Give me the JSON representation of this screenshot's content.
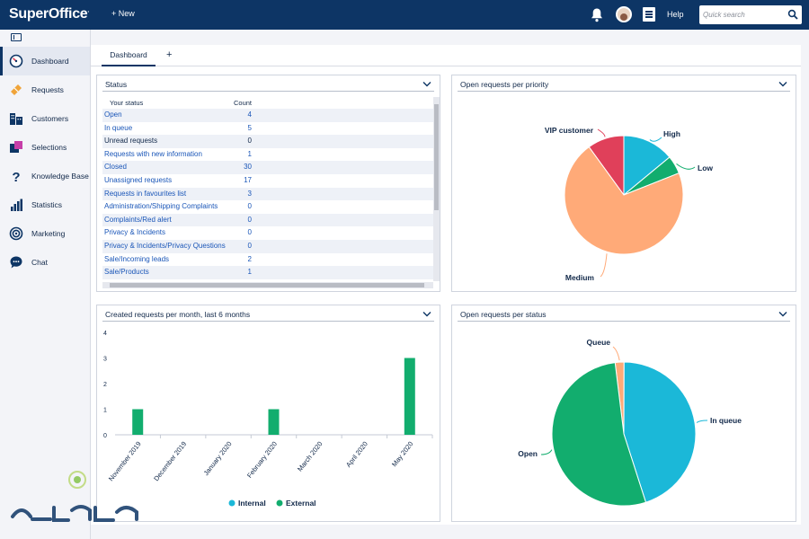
{
  "app": {
    "logo": "SuperOffice",
    "logo_mark": "."
  },
  "topbar": {
    "new_label": "+ New",
    "help_label": "Help",
    "search_placeholder": "Quick search"
  },
  "sidebar": {
    "items": [
      {
        "label": "Dashboard",
        "icon": "speedometer-icon",
        "active": true
      },
      {
        "label": "Requests",
        "icon": "ticket-icon"
      },
      {
        "label": "Customers",
        "icon": "buildings-icon"
      },
      {
        "label": "Selections",
        "icon": "selections-icon"
      },
      {
        "label": "Knowledge Base",
        "icon": "question-mark-icon"
      },
      {
        "label": "Statistics",
        "icon": "bar-chart-icon"
      },
      {
        "label": "Marketing",
        "icon": "target-icon"
      },
      {
        "label": "Chat",
        "icon": "chat-bubble-icon"
      }
    ]
  },
  "tabs": {
    "items": [
      "Dashboard"
    ],
    "add_label": "+"
  },
  "status_panel": {
    "title": "Status",
    "col_status": "Your status",
    "col_count": "Count",
    "rows": [
      {
        "label": "Open",
        "count": "4",
        "link": true
      },
      {
        "label": "In queue",
        "count": "5",
        "link": true
      },
      {
        "label": "Unread requests",
        "count": "0",
        "link": false
      },
      {
        "label": "Requests with new information",
        "count": "1",
        "link": true
      },
      {
        "label": "Closed",
        "count": "30",
        "link": true
      },
      {
        "label": "Unassigned requests",
        "count": "17",
        "link": true
      },
      {
        "label": "Requests in favourites list",
        "count": "3",
        "link": true
      },
      {
        "label": "Administration/Shipping Complaints",
        "count": "0",
        "link": true
      },
      {
        "label": "Complaints/Red alert",
        "count": "0",
        "link": true
      },
      {
        "label": "Privacy & Incidents",
        "count": "0",
        "link": true
      },
      {
        "label": "Privacy & Incidents/Privacy Questions",
        "count": "0",
        "link": true
      },
      {
        "label": "Sale/Incoming leads",
        "count": "2",
        "link": true
      },
      {
        "label": "Sale/Products",
        "count": "1",
        "link": true
      }
    ]
  },
  "colors": {
    "navy": "#0d3565",
    "vip": "#e0405a",
    "high": "#1bb8d8",
    "low": "#12ad6e",
    "medium": "#ffaa78",
    "queue": "#ffaa78",
    "in_queue": "#1bb8d8",
    "open": "#12ad6e",
    "internal": "#1bb8d8",
    "external": "#12ad6e"
  },
  "chart_data": [
    {
      "type": "pie",
      "title": "Open requests per priority",
      "labels": [
        "VIP customer",
        "High",
        "Low",
        "Medium"
      ],
      "values": [
        10,
        14,
        5,
        71
      ]
    },
    {
      "type": "bar",
      "title": "Created requests per month, last 6 months",
      "categories": [
        "November 2019",
        "December 2019",
        "January 2020",
        "February 2020",
        "March 2020",
        "April 2020",
        "May 2020"
      ],
      "series": [
        {
          "name": "Internal",
          "values": [
            0,
            0,
            0,
            0,
            0,
            0,
            0
          ]
        },
        {
          "name": "External",
          "values": [
            1,
            0,
            0,
            1,
            0,
            0,
            3
          ]
        }
      ],
      "yticks": [
        "0",
        "1",
        "2",
        "3",
        "4"
      ],
      "ylim": [
        0,
        4
      ],
      "legend": "bottom"
    },
    {
      "type": "pie",
      "title": "Open requests per status",
      "labels": [
        "Queue",
        "In queue",
        "Open"
      ],
      "values": [
        2,
        45,
        53
      ]
    }
  ]
}
